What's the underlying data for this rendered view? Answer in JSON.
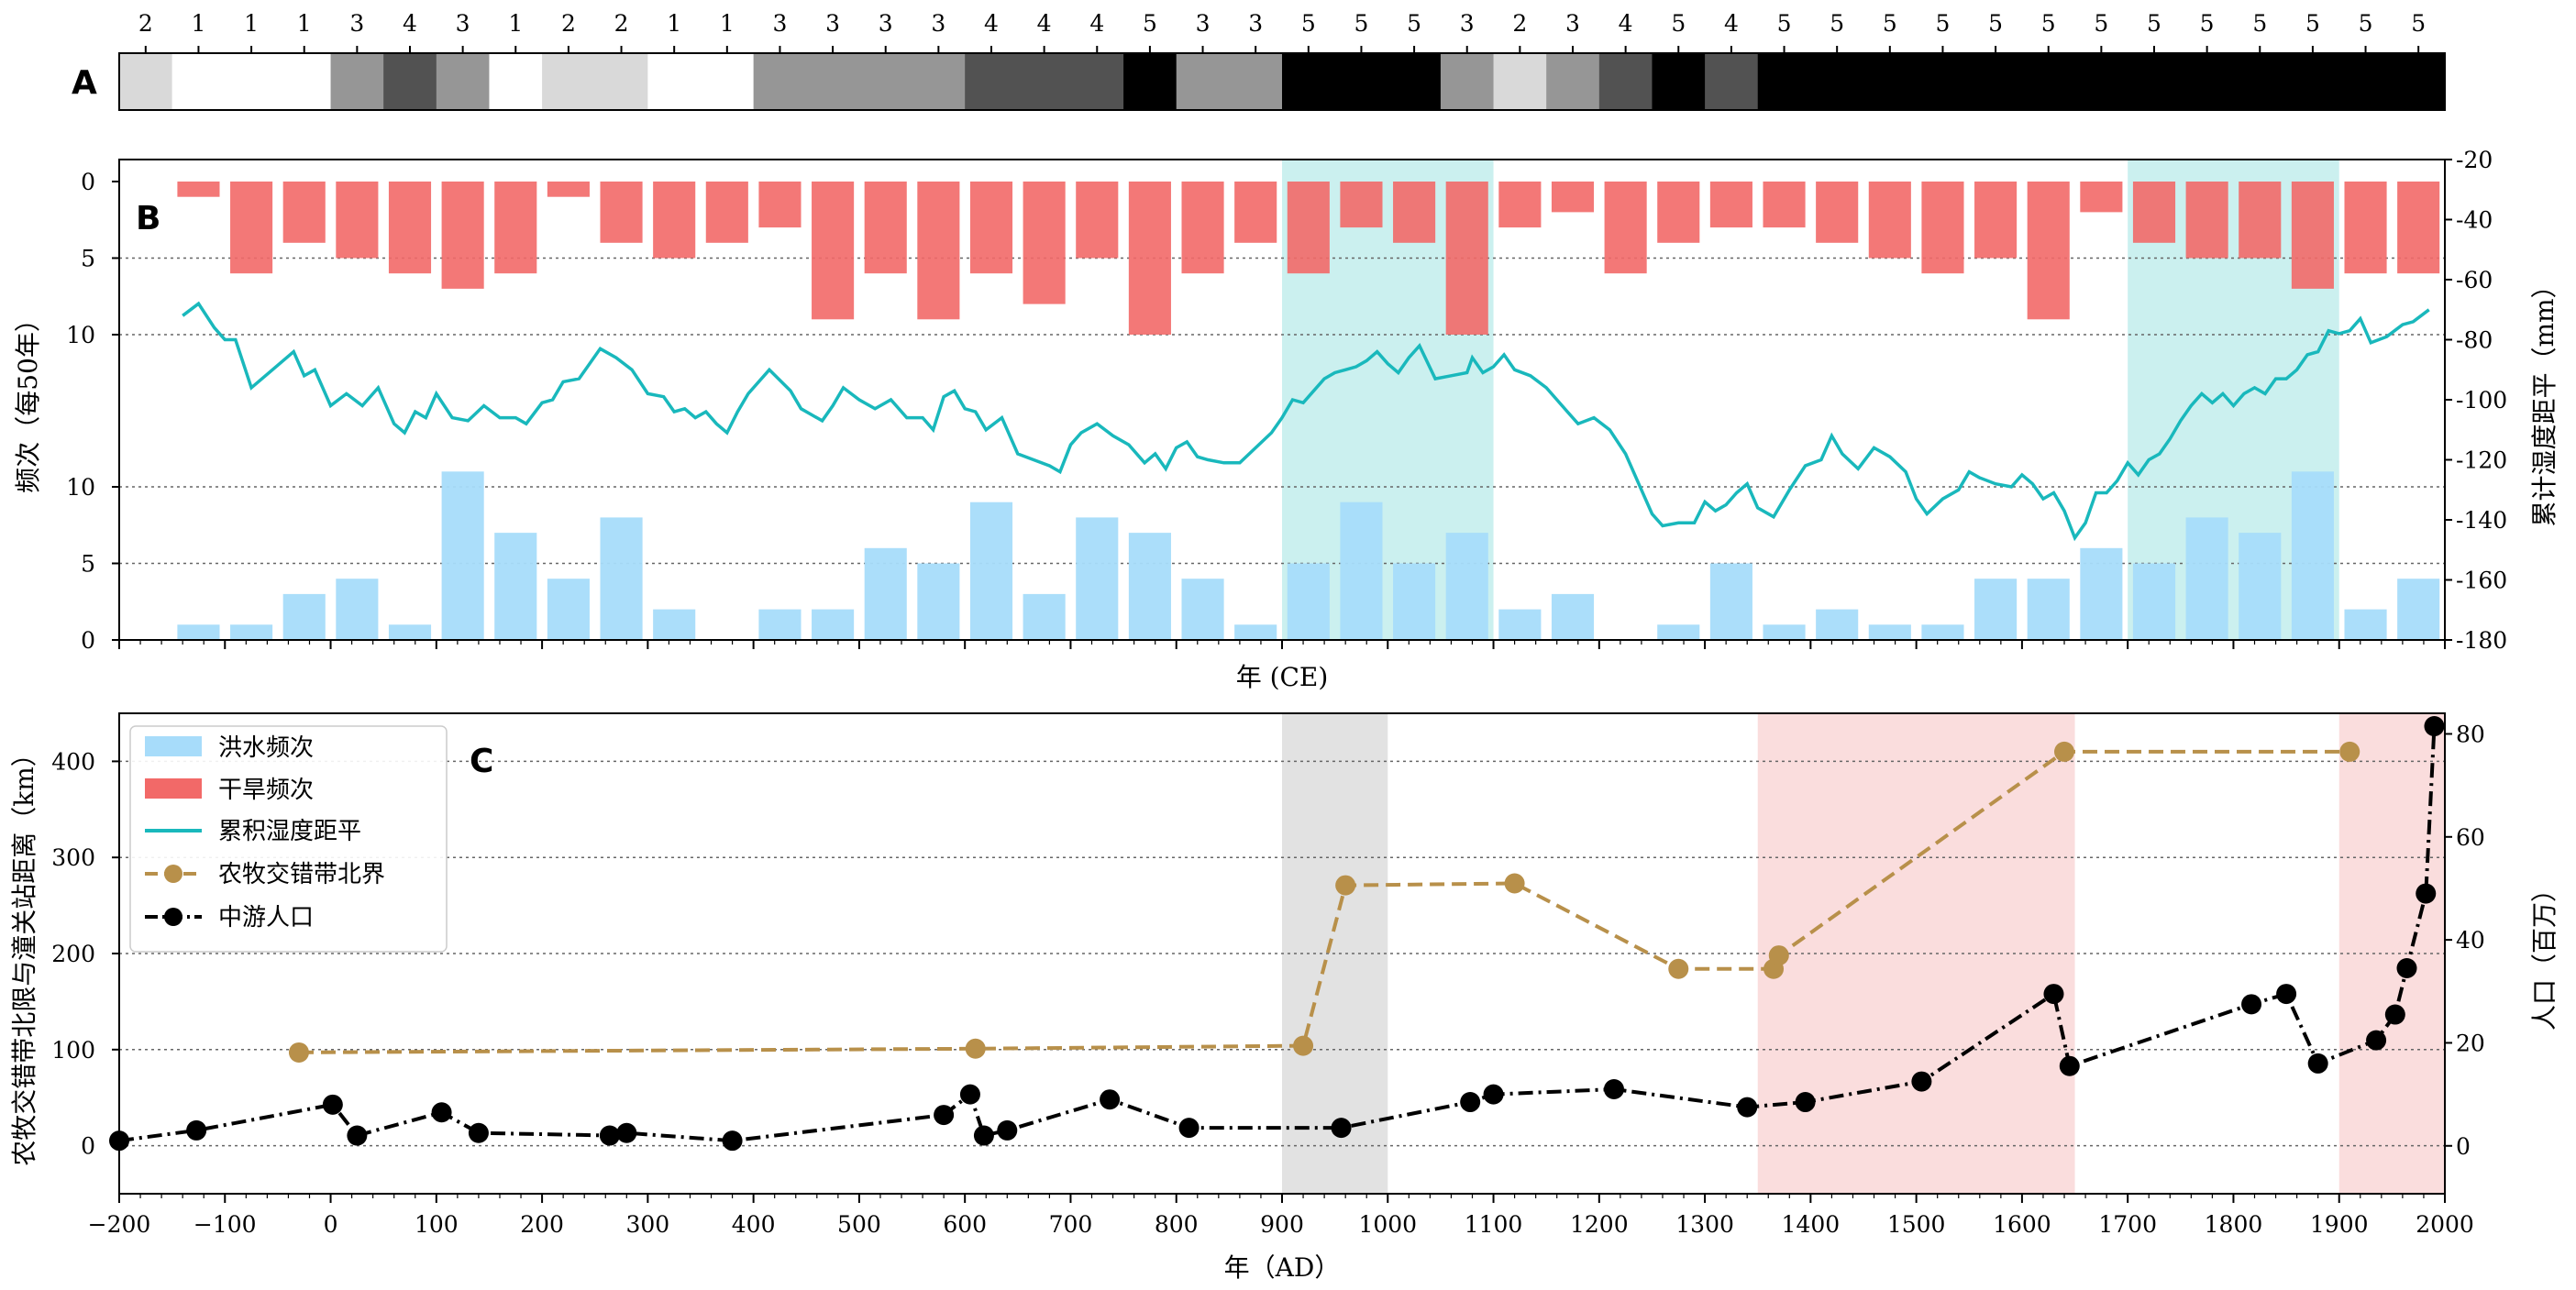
{
  "chart_data": [
    {
      "panel": "A",
      "type": "heatmap",
      "x_range": [
        -200,
        2000
      ],
      "bin_width": 50,
      "colors": {
        "1": "#ffffff",
        "2": "#d9d9d9",
        "3": "#969696",
        "4": "#525252",
        "5": "#000000"
      },
      "values": [
        2,
        1,
        1,
        1,
        3,
        4,
        3,
        1,
        2,
        2,
        1,
        1,
        3,
        3,
        3,
        3,
        4,
        4,
        4,
        5,
        3,
        3,
        5,
        5,
        5,
        3,
        2,
        3,
        4,
        5,
        4,
        5,
        5,
        5,
        5,
        5,
        5,
        5,
        5,
        5,
        5,
        5,
        5,
        5
      ]
    },
    {
      "panel": "B",
      "type": "bar",
      "xlabel": "年 (CE)",
      "ylabel_left": "频次（每50年）",
      "ylabel_right": "累计湿度距平（mm）",
      "xlim": [
        -200,
        2000
      ],
      "bin_width": 50,
      "bin_start": -200,
      "drought_ticks": [
        "0",
        "5",
        "10"
      ],
      "flood_ticks": [
        "0",
        "5",
        "10"
      ],
      "right_ticks": [
        "-20",
        "-40",
        "-60",
        "-80",
        "-100",
        "-120",
        "-140",
        "-160",
        "-180"
      ],
      "right_ylim": [
        -180,
        -20
      ],
      "shaded_periods": [
        [
          900,
          1100
        ],
        [
          1700,
          1900
        ]
      ],
      "shade_color": "#7dd9d6",
      "flood_color": "#a7dcfa",
      "drought_color": "#f26968",
      "humidity_color": "#19b8bc",
      "series": [
        {
          "name": "干旱频次",
          "values": [
            0,
            1,
            6,
            4,
            5,
            6,
            7,
            6,
            1,
            4,
            5,
            4,
            3,
            9,
            6,
            9,
            6,
            8,
            5,
            10,
            6,
            4,
            6,
            3,
            4,
            10,
            3,
            2,
            6,
            4,
            3,
            3,
            4,
            5,
            6,
            5,
            9,
            2,
            4,
            5,
            5,
            7,
            6,
            6
          ]
        },
        {
          "name": "洪水频次",
          "values": [
            0,
            1,
            1,
            3,
            4,
            1,
            11,
            7,
            4,
            8,
            2,
            0,
            2,
            2,
            6,
            5,
            9,
            3,
            8,
            7,
            4,
            1,
            5,
            9,
            5,
            7,
            2,
            3,
            0,
            1,
            5,
            1,
            2,
            1,
            1,
            4,
            4,
            6,
            5,
            8,
            7,
            11,
            2,
            4
          ]
        },
        {
          "name": "累积湿度距平",
          "x": [
            -140,
            -125,
            -110,
            -100,
            -90,
            -75,
            -55,
            -35,
            -25,
            -15,
            0,
            15,
            30,
            45,
            60,
            70,
            80,
            90,
            100,
            115,
            130,
            145,
            160,
            175,
            185,
            200,
            210,
            220,
            235,
            255,
            270,
            285,
            300,
            315,
            325,
            335,
            345,
            355,
            365,
            375,
            385,
            395,
            415,
            435,
            445,
            455,
            465,
            475,
            485,
            500,
            515,
            530,
            545,
            560,
            570,
            580,
            590,
            600,
            610,
            620,
            635,
            650,
            665,
            680,
            690,
            700,
            710,
            725,
            740,
            755,
            770,
            780,
            790,
            800,
            810,
            820,
            830,
            845,
            860,
            875,
            890,
            900,
            910,
            920,
            930,
            940,
            950,
            960,
            970,
            980,
            990,
            1000,
            1010,
            1020,
            1030,
            1045,
            1060,
            1075,
            1080,
            1090,
            1100,
            1110,
            1120,
            1135,
            1150,
            1160,
            1170,
            1180,
            1195,
            1210,
            1225,
            1240,
            1250,
            1260,
            1275,
            1290,
            1300,
            1310,
            1320,
            1330,
            1340,
            1350,
            1365,
            1380,
            1395,
            1410,
            1420,
            1430,
            1445,
            1460,
            1475,
            1490,
            1500,
            1510,
            1525,
            1540,
            1550,
            1560,
            1575,
            1590,
            1600,
            1610,
            1620,
            1630,
            1640,
            1650,
            1660,
            1670,
            1680,
            1690,
            1700,
            1710,
            1720,
            1730,
            1740,
            1750,
            1760,
            1770,
            1780,
            1790,
            1800,
            1810,
            1820,
            1830,
            1840,
            1850,
            1860,
            1870,
            1880,
            1890,
            1900,
            1910,
            1920,
            1930,
            1945,
            1960,
            1970,
            1985
          ],
          "values": [
            -72,
            -68,
            -76,
            -80,
            -80,
            -96,
            -90,
            -84,
            -92,
            -90,
            -102,
            -98,
            -102,
            -96,
            -108,
            -111,
            -104,
            -106,
            -98,
            -106,
            -107,
            -102,
            -106,
            -106,
            -108,
            -101,
            -100,
            -94,
            -93,
            -83,
            -86,
            -90,
            -98,
            -99,
            -104,
            -103,
            -106,
            -104,
            -108,
            -111,
            -104,
            -98,
            -90,
            -97,
            -103,
            -105,
            -107,
            -102,
            -96,
            -100,
            -103,
            -100,
            -106,
            -106,
            -110,
            -99,
            -97,
            -103,
            -104,
            -110,
            -106,
            -118,
            -120,
            -122,
            -124,
            -115,
            -111,
            -108,
            -112,
            -115,
            -121,
            -118,
            -123,
            -116,
            -114,
            -119,
            -120,
            -121,
            -121,
            -116,
            -111,
            -106,
            -100,
            -101,
            -97,
            -93,
            -91,
            -90,
            -89,
            -87,
            -84,
            -88,
            -91,
            -86,
            -82,
            -93,
            -92,
            -91,
            -86,
            -91,
            -89,
            -85,
            -90,
            -92,
            -96,
            -100,
            -104,
            -108,
            -106,
            -110,
            -118,
            -130,
            -138,
            -142,
            -141,
            -141,
            -134,
            -137,
            -135,
            -131,
            -128,
            -136,
            -139,
            -130,
            -122,
            -120,
            -112,
            -118,
            -123,
            -116,
            -119,
            -124,
            -133,
            -138,
            -133,
            -130,
            -124,
            -126,
            -128,
            -129,
            -125,
            -128,
            -133,
            -131,
            -137,
            -146,
            -141,
            -131,
            -131,
            -127,
            -121,
            -125,
            -120,
            -118,
            -113,
            -107,
            -102,
            -98,
            -101,
            -98,
            -102,
            -98,
            -96,
            -98,
            -93,
            -93,
            -90,
            -85,
            -84,
            -77,
            -78,
            -77,
            -73,
            -81,
            -79,
            -75,
            -74,
            -70
          ]
        }
      ]
    },
    {
      "panel": "C",
      "type": "line",
      "xlabel": "年（AD）",
      "ylabel_left": "农牧交错带北限与潼关站距离（km）",
      "ylabel_right": "人口（百万）",
      "xlim": [
        -200,
        2000
      ],
      "ylim_left": [
        -50,
        450
      ],
      "ylim_right": [
        -9.3,
        84
      ],
      "x_ticks": [
        "−200",
        "−100",
        "0",
        "100",
        "200",
        "300",
        "400",
        "500",
        "600",
        "700",
        "800",
        "900",
        "1000",
        "1100",
        "1200",
        "1300",
        "1400",
        "1500",
        "1600",
        "1700",
        "1800",
        "1900",
        "2000"
      ],
      "left_ticks": [
        "0",
        "100",
        "200",
        "300",
        "400"
      ],
      "right_ticks": [
        "0",
        "20",
        "40",
        "60",
        "80"
      ],
      "shaded_periods": [
        {
          "range": [
            900,
            1000
          ],
          "color": "#bfbfbf"
        },
        {
          "range": [
            1350,
            1650
          ],
          "color": "#f4b3b3"
        },
        {
          "range": [
            1900,
            2000
          ],
          "color": "#f4b3b3"
        }
      ],
      "series": [
        {
          "name": "农牧交错带北界",
          "color": "#b8904a",
          "x": [
            -30,
            610,
            920,
            960,
            1120,
            1275,
            1365,
            1370,
            1640,
            1910
          ],
          "y": [
            97,
            101,
            104,
            271,
            273,
            184,
            184,
            198,
            410,
            410
          ]
        },
        {
          "name": "中游人口",
          "color": "#000000",
          "x": [
            -200,
            -127,
            2,
            25,
            105,
            140,
            264,
            280,
            380,
            580,
            605,
            618,
            640,
            737,
            812,
            956,
            1078,
            1100,
            1214,
            1340,
            1395,
            1505,
            1630,
            1645,
            1817,
            1850,
            1880,
            1935,
            1953,
            1964,
            1982,
            1990
          ],
          "y": [
            1,
            3,
            8,
            2,
            6.5,
            2.5,
            2,
            2.5,
            1,
            6,
            10,
            2,
            3,
            9,
            3.5,
            3.5,
            8.5,
            10,
            11,
            7.5,
            8.5,
            12.5,
            29.5,
            15.5,
            27.5,
            29.5,
            16,
            20.5,
            25.5,
            34.5,
            49,
            81.5
          ]
        }
      ]
    }
  ],
  "labels": {
    "A": "A",
    "B": "B",
    "C": "C"
  },
  "legend": {
    "flood": "洪水频次",
    "drought": "干旱频次",
    "humidity": "累积湿度距平",
    "boundary": "农牧交错带北界",
    "population": "中游人口"
  }
}
